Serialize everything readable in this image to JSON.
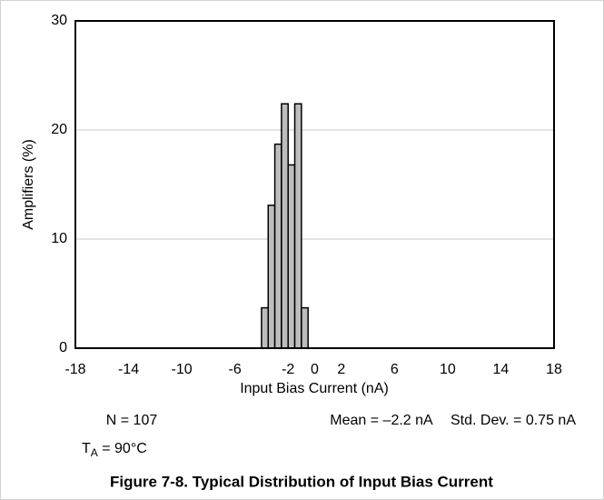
{
  "chart_data": {
    "type": "histogram",
    "x_label": "Input Bias Current (nA)",
    "y_label": "Amplifiers (%)",
    "bins": [
      -4,
      -3.5,
      -3,
      -2.5,
      -2,
      -1.5,
      -1,
      -0.5
    ],
    "values": [
      3.7,
      13.1,
      18.7,
      22.4,
      16.8,
      22.4,
      3.7
    ],
    "color": "#bdbdbd",
    "xlim": [
      -18,
      18
    ],
    "xticks": [
      -18,
      -14,
      -10,
      -6,
      -2,
      0,
      2,
      6,
      10,
      14,
      18
    ],
    "ylim": [
      0,
      30
    ],
    "yticks": [
      0,
      10,
      20,
      30
    ],
    "grid": true,
    "stats": [
      "N = 107",
      "Mean = –2.2 nA",
      "Std. Dev. = 0.75 nA"
    ],
    "condition": {
      "symbol": "T",
      "subscript": "A",
      "text": " = 90°C"
    },
    "caption": "Figure 7-8. Typical Distribution of Input Bias Current"
  }
}
